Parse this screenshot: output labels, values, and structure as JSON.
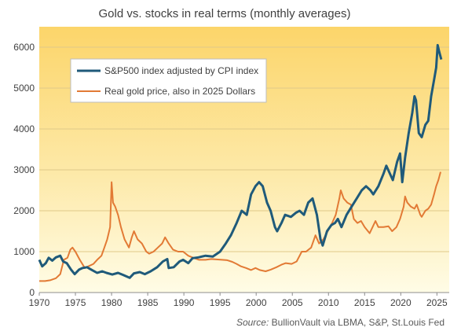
{
  "chart_data": {
    "type": "line",
    "title": "Gold vs. stocks in real terms (monthly  averages)",
    "source_label": "Source:",
    "source_text": "BullionVault via LBMA, S&P, St.Louis Fed",
    "xlim": [
      1970,
      2026.7
    ],
    "ylim": [
      0,
      6500
    ],
    "xticks": [
      1970,
      1975,
      1980,
      1985,
      1990,
      1995,
      2000,
      2005,
      2010,
      2015,
      2020,
      2025
    ],
    "yticks": [
      0,
      1000,
      2000,
      3000,
      4000,
      5000,
      6000
    ],
    "grid": "horizontal",
    "legend_position": "top-left",
    "series": [
      {
        "name": "S&P500 index adjusted by CPI index",
        "color": "#1f5a7a",
        "points": [
          [
            1970,
            800
          ],
          [
            1970.4,
            640
          ],
          [
            1970.9,
            720
          ],
          [
            1971.3,
            850
          ],
          [
            1971.8,
            780
          ],
          [
            1972.3,
            860
          ],
          [
            1972.9,
            900
          ],
          [
            1973.3,
            760
          ],
          [
            1973.8,
            720
          ],
          [
            1974.4,
            560
          ],
          [
            1974.9,
            450
          ],
          [
            1975.5,
            560
          ],
          [
            1976,
            600
          ],
          [
            1976.6,
            620
          ],
          [
            1977.2,
            560
          ],
          [
            1978,
            480
          ],
          [
            1978.7,
            520
          ],
          [
            1979.3,
            480
          ],
          [
            1980.1,
            440
          ],
          [
            1980.9,
            480
          ],
          [
            1981.6,
            430
          ],
          [
            1982.5,
            360
          ],
          [
            1983.1,
            470
          ],
          [
            1983.9,
            500
          ],
          [
            1984.6,
            450
          ],
          [
            1985.4,
            520
          ],
          [
            1986.3,
            620
          ],
          [
            1987.1,
            760
          ],
          [
            1987.7,
            820
          ],
          [
            1987.9,
            600
          ],
          [
            1988.6,
            620
          ],
          [
            1989.4,
            760
          ],
          [
            1989.9,
            800
          ],
          [
            1990.6,
            720
          ],
          [
            1991.2,
            840
          ],
          [
            1992,
            860
          ],
          [
            1993,
            900
          ],
          [
            1994,
            880
          ],
          [
            1995,
            1000
          ],
          [
            1995.8,
            1200
          ],
          [
            1996.5,
            1400
          ],
          [
            1997.3,
            1700
          ],
          [
            1998,
            2000
          ],
          [
            1998.7,
            1900
          ],
          [
            1999.3,
            2400
          ],
          [
            1999.9,
            2600
          ],
          [
            2000.4,
            2700
          ],
          [
            2000.9,
            2600
          ],
          [
            2001.5,
            2200
          ],
          [
            2002,
            2000
          ],
          [
            2002.6,
            1600
          ],
          [
            2002.9,
            1500
          ],
          [
            2003.5,
            1700
          ],
          [
            2004,
            1900
          ],
          [
            2004.8,
            1850
          ],
          [
            2005.5,
            1950
          ],
          [
            2006,
            2000
          ],
          [
            2006.6,
            1900
          ],
          [
            2007.2,
            2200
          ],
          [
            2007.8,
            2300
          ],
          [
            2008.4,
            1900
          ],
          [
            2008.9,
            1300
          ],
          [
            2009.2,
            1150
          ],
          [
            2009.8,
            1500
          ],
          [
            2010.4,
            1650
          ],
          [
            2010.9,
            1700
          ],
          [
            2011.3,
            1800
          ],
          [
            2011.8,
            1600
          ],
          [
            2012.5,
            1900
          ],
          [
            2013.2,
            2100
          ],
          [
            2013.9,
            2300
          ],
          [
            2014.6,
            2500
          ],
          [
            2015.2,
            2600
          ],
          [
            2015.8,
            2500
          ],
          [
            2016.2,
            2400
          ],
          [
            2016.9,
            2600
          ],
          [
            2017.6,
            2900
          ],
          [
            2018,
            3100
          ],
          [
            2018.9,
            2750
          ],
          [
            2019.5,
            3200
          ],
          [
            2019.9,
            3400
          ],
          [
            2020.2,
            2700
          ],
          [
            2020.6,
            3300
          ],
          [
            2021.1,
            3900
          ],
          [
            2021.6,
            4400
          ],
          [
            2021.9,
            4800
          ],
          [
            2022.1,
            4700
          ],
          [
            2022.5,
            3900
          ],
          [
            2022.9,
            3800
          ],
          [
            2023.4,
            4100
          ],
          [
            2023.8,
            4200
          ],
          [
            2024.2,
            4800
          ],
          [
            2024.6,
            5200
          ],
          [
            2024.9,
            5500
          ],
          [
            2025.1,
            6050
          ],
          [
            2025.3,
            5900
          ],
          [
            2025.6,
            5700
          ]
        ]
      },
      {
        "name": "Real gold price, also in 2025 Dollars",
        "color": "#e27a35",
        "points": [
          [
            1970,
            280
          ],
          [
            1970.8,
            280
          ],
          [
            1971.5,
            300
          ],
          [
            1972.3,
            350
          ],
          [
            1972.9,
            450
          ],
          [
            1973.4,
            800
          ],
          [
            1973.9,
            850
          ],
          [
            1974.3,
            1050
          ],
          [
            1974.6,
            1100
          ],
          [
            1975,
            1000
          ],
          [
            1975.6,
            800
          ],
          [
            1976.3,
            600
          ],
          [
            1976.9,
            650
          ],
          [
            1977.5,
            700
          ],
          [
            1978,
            800
          ],
          [
            1978.6,
            900
          ],
          [
            1979,
            1100
          ],
          [
            1979.4,
            1300
          ],
          [
            1979.8,
            1600
          ],
          [
            1980,
            2700
          ],
          [
            1980.2,
            2200
          ],
          [
            1980.5,
            2100
          ],
          [
            1980.9,
            1900
          ],
          [
            1981.3,
            1600
          ],
          [
            1981.8,
            1300
          ],
          [
            1982.4,
            1100
          ],
          [
            1982.8,
            1350
          ],
          [
            1983.1,
            1500
          ],
          [
            1983.6,
            1300
          ],
          [
            1984.2,
            1200
          ],
          [
            1984.8,
            1000
          ],
          [
            1985.2,
            950
          ],
          [
            1985.8,
            1000
          ],
          [
            1986.4,
            1100
          ],
          [
            1987,
            1200
          ],
          [
            1987.4,
            1350
          ],
          [
            1987.9,
            1200
          ],
          [
            1988.5,
            1050
          ],
          [
            1989.2,
            1000
          ],
          [
            1989.9,
            1000
          ],
          [
            1990.6,
            900
          ],
          [
            1991.3,
            850
          ],
          [
            1992.1,
            800
          ],
          [
            1993,
            800
          ],
          [
            1993.8,
            820
          ],
          [
            1994.5,
            810
          ],
          [
            1995.3,
            800
          ],
          [
            1996,
            790
          ],
          [
            1996.7,
            750
          ],
          [
            1997.3,
            700
          ],
          [
            1997.9,
            640
          ],
          [
            1998.6,
            600
          ],
          [
            1999.3,
            550
          ],
          [
            1999.9,
            600
          ],
          [
            2000.5,
            550
          ],
          [
            2001.3,
            520
          ],
          [
            2002,
            560
          ],
          [
            2002.8,
            620
          ],
          [
            2003.5,
            680
          ],
          [
            2004.1,
            720
          ],
          [
            2004.9,
            700
          ],
          [
            2005.6,
            760
          ],
          [
            2006.3,
            1000
          ],
          [
            2006.9,
            1000
          ],
          [
            2007.6,
            1100
          ],
          [
            2008.2,
            1400
          ],
          [
            2008.7,
            1200
          ],
          [
            2009.3,
            1300
          ],
          [
            2009.9,
            1500
          ],
          [
            2010.5,
            1700
          ],
          [
            2011,
            1900
          ],
          [
            2011.5,
            2300
          ],
          [
            2011.7,
            2500
          ],
          [
            2012.1,
            2300
          ],
          [
            2012.6,
            2200
          ],
          [
            2013.1,
            2150
          ],
          [
            2013.5,
            1800
          ],
          [
            2014,
            1700
          ],
          [
            2014.5,
            1750
          ],
          [
            2015,
            1600
          ],
          [
            2015.7,
            1450
          ],
          [
            2016.1,
            1600
          ],
          [
            2016.5,
            1750
          ],
          [
            2016.9,
            1600
          ],
          [
            2017.6,
            1600
          ],
          [
            2018.3,
            1620
          ],
          [
            2018.8,
            1500
          ],
          [
            2019.4,
            1600
          ],
          [
            2019.9,
            1800
          ],
          [
            2020.4,
            2100
          ],
          [
            2020.6,
            2350
          ],
          [
            2020.9,
            2200
          ],
          [
            2021.4,
            2100
          ],
          [
            2021.9,
            2050
          ],
          [
            2022.2,
            2150
          ],
          [
            2022.7,
            1900
          ],
          [
            2022.9,
            1850
          ],
          [
            2023.4,
            2000
          ],
          [
            2023.8,
            2050
          ],
          [
            2024.2,
            2150
          ],
          [
            2024.6,
            2400
          ],
          [
            2024.9,
            2600
          ],
          [
            2025.2,
            2750
          ],
          [
            2025.5,
            2950
          ]
        ]
      }
    ]
  }
}
